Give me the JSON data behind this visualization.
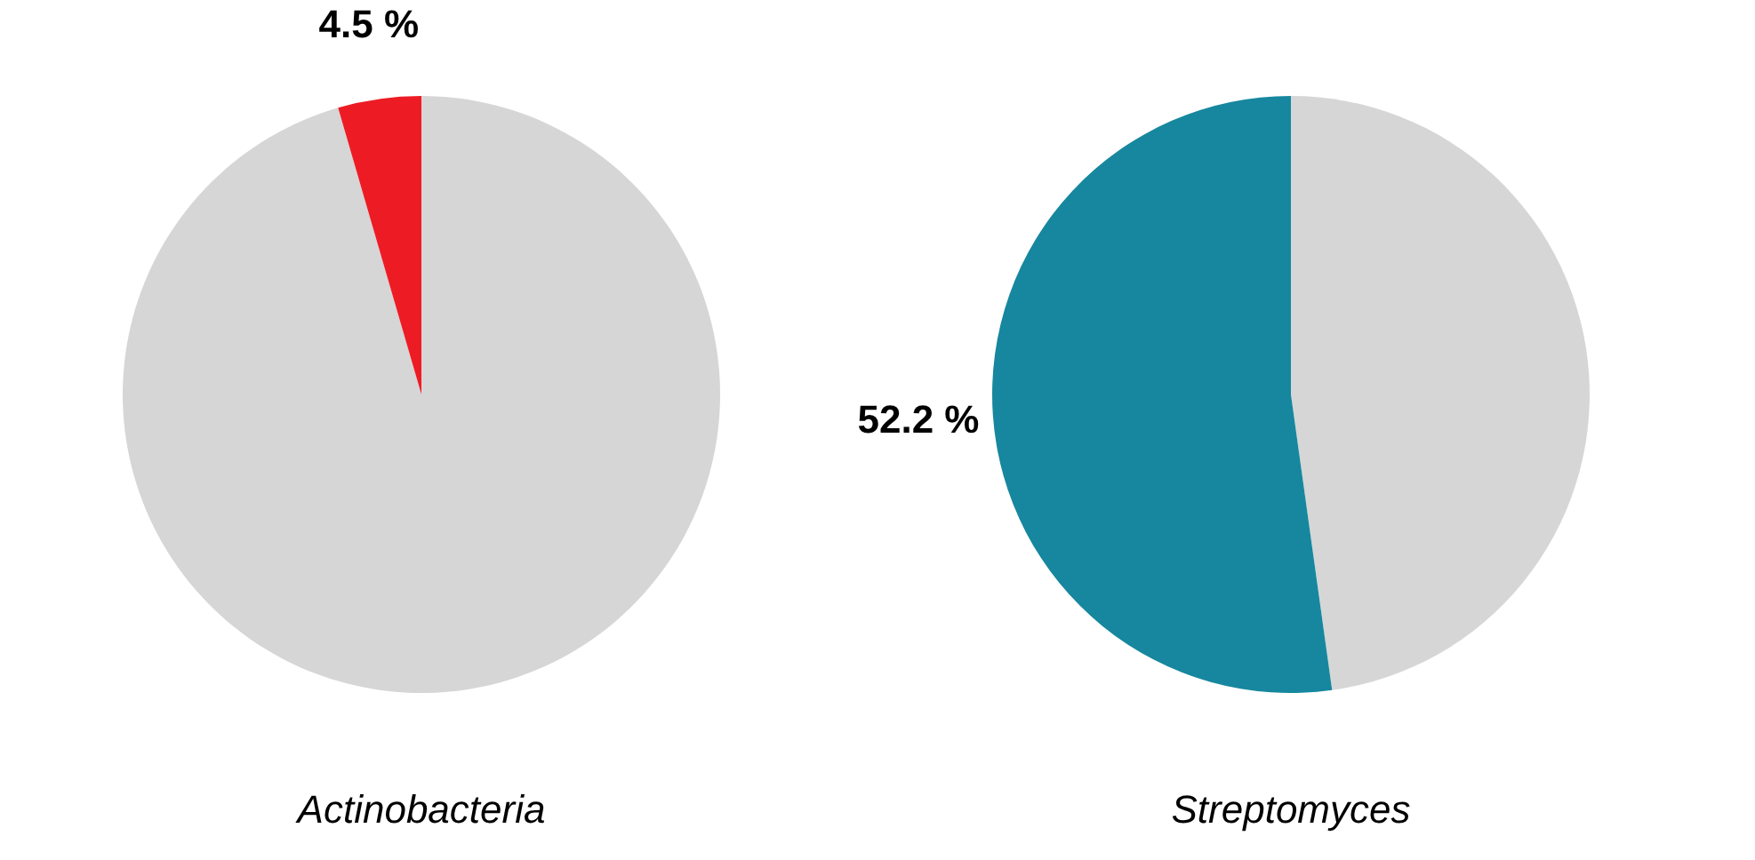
{
  "chart_data": [
    {
      "type": "pie",
      "title": "Actinobacteria",
      "categories": [
        null,
        null
      ],
      "values": [
        95.5,
        4.5
      ],
      "colors": [
        "#d6d6d6",
        "#ed1c24"
      ],
      "value_labels": [
        null,
        "4.5 %"
      ],
      "legend": false
    },
    {
      "type": "pie",
      "title": "Streptomyces",
      "categories": [
        null,
        null
      ],
      "values": [
        47.8,
        52.2
      ],
      "colors": [
        "#d6d6d6",
        "#16879e"
      ],
      "value_labels": [
        null,
        "52.2 %"
      ],
      "legend": false
    }
  ]
}
